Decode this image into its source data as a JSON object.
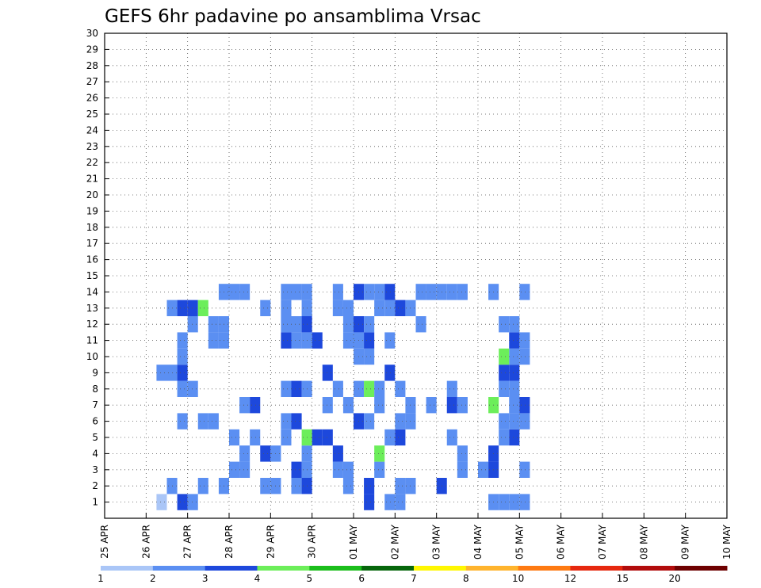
{
  "chart_data": {
    "type": "heatmap",
    "title": "GEFS 6hr padavine po ansamblima Vrsac",
    "xlabel": "",
    "ylabel": "",
    "x_ticks": [
      "25 APR",
      "26 APR",
      "27 APR",
      "28 APR",
      "29 APR",
      "30 APR",
      "01 MAY",
      "02 MAY",
      "03 MAY",
      "04 MAY",
      "05 MAY",
      "06 MAY",
      "07 MAY",
      "08 MAY",
      "09 MAY",
      "10 MAY"
    ],
    "y_ticks": [
      "1",
      "2",
      "3",
      "4",
      "5",
      "6",
      "7",
      "8",
      "9",
      "10",
      "11",
      "12",
      "13",
      "14",
      "15",
      "16",
      "17",
      "18",
      "19",
      "20",
      "21",
      "22",
      "23",
      "24",
      "25",
      "26",
      "27",
      "28",
      "29",
      "30"
    ],
    "xlim_days": [
      0,
      15
    ],
    "ylim_members": [
      0,
      30
    ],
    "time_step": "6 hr",
    "grid": "dotted",
    "colorbar": {
      "position": "bottom",
      "labels": [
        "1",
        "2",
        "3",
        "4",
        "5",
        "6",
        "7",
        "8",
        "10",
        "12",
        "15",
        "20"
      ],
      "colors": [
        "#aac6f7",
        "#5b8ff2",
        "#1d48dc",
        "#6cee5a",
        "#1bbe1b",
        "#06660b",
        "#fff700",
        "#ffb42d",
        "#fe7a12",
        "#e6280f",
        "#b20c0c",
        "#6e0000"
      ]
    },
    "cells": [
      [
        0,
        1,
        0
      ],
      [
        2,
        1,
        2
      ],
      [
        3,
        1,
        1
      ],
      [
        20,
        1,
        2
      ],
      [
        22,
        1,
        1
      ],
      [
        23,
        1,
        1
      ],
      [
        32,
        1,
        1
      ],
      [
        33,
        1,
        1
      ],
      [
        34,
        1,
        1
      ],
      [
        35,
        1,
        1
      ],
      [
        1,
        2,
        1
      ],
      [
        4,
        2,
        1
      ],
      [
        6,
        2,
        1
      ],
      [
        10,
        2,
        1
      ],
      [
        11,
        2,
        1
      ],
      [
        13,
        2,
        1
      ],
      [
        14,
        2,
        2
      ],
      [
        18,
        2,
        1
      ],
      [
        20,
        2,
        2
      ],
      [
        23,
        2,
        1
      ],
      [
        24,
        2,
        1
      ],
      [
        27,
        2,
        2
      ],
      [
        7,
        3,
        1
      ],
      [
        8,
        3,
        1
      ],
      [
        13,
        3,
        2
      ],
      [
        14,
        3,
        1
      ],
      [
        17,
        3,
        1
      ],
      [
        18,
        3,
        1
      ],
      [
        21,
        3,
        1
      ],
      [
        29,
        3,
        1
      ],
      [
        31,
        3,
        1
      ],
      [
        32,
        3,
        2
      ],
      [
        35,
        3,
        1
      ],
      [
        8,
        4,
        1
      ],
      [
        10,
        4,
        2
      ],
      [
        11,
        4,
        1
      ],
      [
        14,
        4,
        1
      ],
      [
        17,
        4,
        2
      ],
      [
        21,
        4,
        3
      ],
      [
        29,
        4,
        1
      ],
      [
        32,
        4,
        2
      ],
      [
        7,
        5,
        1
      ],
      [
        9,
        5,
        1
      ],
      [
        12,
        5,
        1
      ],
      [
        14,
        5,
        3
      ],
      [
        15,
        5,
        2
      ],
      [
        16,
        5,
        2
      ],
      [
        22,
        5,
        1
      ],
      [
        23,
        5,
        2
      ],
      [
        28,
        5,
        1
      ],
      [
        33,
        5,
        1
      ],
      [
        34,
        5,
        2
      ],
      [
        2,
        6,
        1
      ],
      [
        4,
        6,
        1
      ],
      [
        5,
        6,
        1
      ],
      [
        12,
        6,
        1
      ],
      [
        13,
        6,
        2
      ],
      [
        19,
        6,
        2
      ],
      [
        20,
        6,
        1
      ],
      [
        23,
        6,
        1
      ],
      [
        24,
        6,
        1
      ],
      [
        33,
        6,
        1
      ],
      [
        34,
        6,
        1
      ],
      [
        35,
        6,
        1
      ],
      [
        8,
        7,
        1
      ],
      [
        9,
        7,
        2
      ],
      [
        16,
        7,
        1
      ],
      [
        18,
        7,
        1
      ],
      [
        21,
        7,
        1
      ],
      [
        24,
        7,
        1
      ],
      [
        26,
        7,
        1
      ],
      [
        28,
        7,
        2
      ],
      [
        29,
        7,
        1
      ],
      [
        32,
        7,
        3
      ],
      [
        34,
        7,
        1
      ],
      [
        35,
        7,
        2
      ],
      [
        2,
        8,
        1
      ],
      [
        3,
        8,
        1
      ],
      [
        12,
        8,
        1
      ],
      [
        13,
        8,
        2
      ],
      [
        14,
        8,
        1
      ],
      [
        17,
        8,
        1
      ],
      [
        19,
        8,
        1
      ],
      [
        20,
        8,
        3
      ],
      [
        21,
        8,
        1
      ],
      [
        23,
        8,
        1
      ],
      [
        28,
        8,
        1
      ],
      [
        33,
        8,
        1
      ],
      [
        34,
        8,
        1
      ],
      [
        0,
        9,
        1
      ],
      [
        1,
        9,
        1
      ],
      [
        2,
        9,
        2
      ],
      [
        16,
        9,
        2
      ],
      [
        22,
        9,
        2
      ],
      [
        33,
        9,
        2
      ],
      [
        34,
        9,
        2
      ],
      [
        2,
        10,
        1
      ],
      [
        19,
        10,
        1
      ],
      [
        20,
        10,
        1
      ],
      [
        34,
        10,
        1
      ],
      [
        35,
        10,
        1
      ],
      [
        33,
        10,
        3
      ],
      [
        2,
        11,
        1
      ],
      [
        5,
        11,
        1
      ],
      [
        6,
        11,
        1
      ],
      [
        12,
        11,
        2
      ],
      [
        13,
        11,
        1
      ],
      [
        14,
        11,
        1
      ],
      [
        15,
        11,
        2
      ],
      [
        18,
        11,
        1
      ],
      [
        19,
        11,
        1
      ],
      [
        20,
        11,
        2
      ],
      [
        22,
        11,
        1
      ],
      [
        34,
        11,
        2
      ],
      [
        35,
        11,
        1
      ],
      [
        3,
        12,
        1
      ],
      [
        5,
        12,
        1
      ],
      [
        6,
        12,
        1
      ],
      [
        12,
        12,
        1
      ],
      [
        13,
        12,
        1
      ],
      [
        14,
        12,
        2
      ],
      [
        18,
        12,
        1
      ],
      [
        19,
        12,
        2
      ],
      [
        20,
        12,
        1
      ],
      [
        25,
        12,
        1
      ],
      [
        33,
        12,
        1
      ],
      [
        34,
        12,
        1
      ],
      [
        1,
        13,
        1
      ],
      [
        2,
        13,
        2
      ],
      [
        3,
        13,
        2
      ],
      [
        4,
        13,
        3
      ],
      [
        10,
        13,
        1
      ],
      [
        12,
        13,
        1
      ],
      [
        14,
        13,
        1
      ],
      [
        17,
        13,
        1
      ],
      [
        18,
        13,
        1
      ],
      [
        21,
        13,
        1
      ],
      [
        22,
        13,
        1
      ],
      [
        23,
        13,
        2
      ],
      [
        24,
        13,
        1
      ],
      [
        6,
        14,
        1
      ],
      [
        7,
        14,
        1
      ],
      [
        8,
        14,
        1
      ],
      [
        12,
        14,
        1
      ],
      [
        13,
        14,
        1
      ],
      [
        14,
        14,
        1
      ],
      [
        17,
        14,
        1
      ],
      [
        19,
        14,
        2
      ],
      [
        20,
        14,
        1
      ],
      [
        21,
        14,
        1
      ],
      [
        22,
        14,
        2
      ],
      [
        25,
        14,
        1
      ],
      [
        26,
        14,
        1
      ],
      [
        27,
        14,
        1
      ],
      [
        28,
        14,
        1
      ],
      [
        29,
        14,
        1
      ],
      [
        32,
        14,
        1
      ],
      [
        35,
        14,
        1
      ]
    ]
  }
}
